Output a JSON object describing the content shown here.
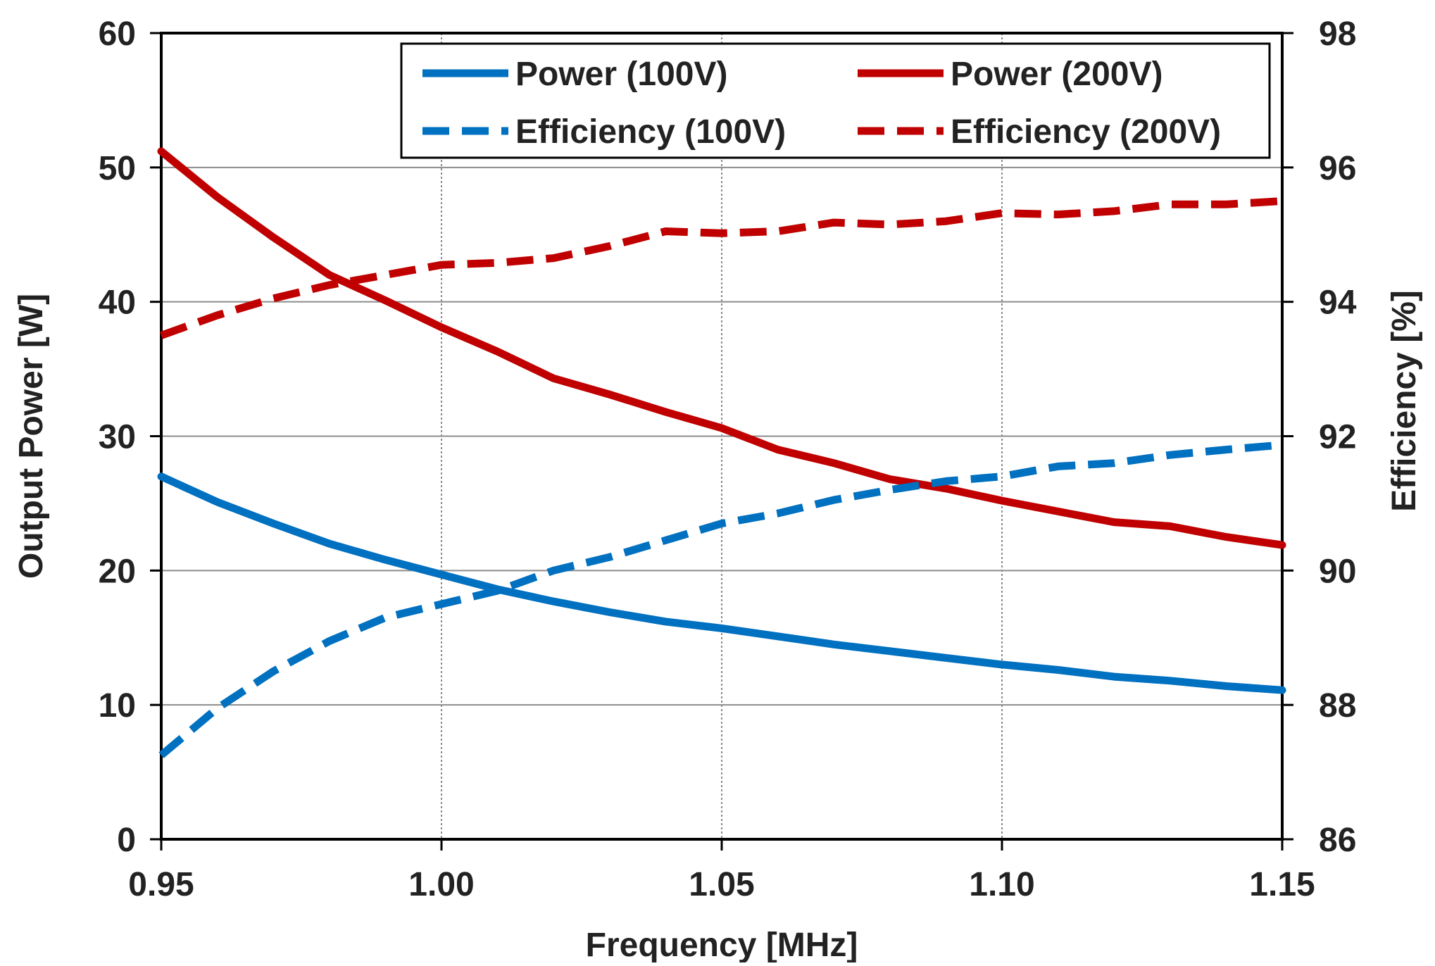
{
  "chart_data": {
    "type": "line",
    "title": "",
    "xlabel": "Frequency [MHz]",
    "ylabel": "Output Power [W]",
    "y2label": "Efficiency [%]",
    "xlim": [
      0.95,
      1.15
    ],
    "ylim": [
      0,
      60
    ],
    "y2lim": [
      86,
      98
    ],
    "x_ticks": [
      "0.95",
      "1.00",
      "1.05",
      "1.10",
      "1.15"
    ],
    "y_ticks": [
      "0",
      "10",
      "20",
      "30",
      "40",
      "50",
      "60"
    ],
    "y2_ticks": [
      "86",
      "88",
      "90",
      "92",
      "94",
      "96",
      "98"
    ],
    "grid": true,
    "legend_position": "top-right",
    "series": [
      {
        "name": "Power (100V)",
        "axis": "left",
        "style": "solid",
        "color": "#0070C0",
        "x": [
          0.95,
          0.96,
          0.97,
          0.98,
          0.99,
          1.0,
          1.01,
          1.02,
          1.03,
          1.04,
          1.05,
          1.06,
          1.07,
          1.08,
          1.09,
          1.1,
          1.11,
          1.12,
          1.13,
          1.14,
          1.15
        ],
        "y": [
          27.0,
          25.1,
          23.5,
          22.0,
          20.8,
          19.7,
          18.6,
          17.7,
          16.9,
          16.2,
          15.7,
          15.1,
          14.5,
          14.0,
          13.5,
          13.0,
          12.6,
          12.1,
          11.8,
          11.4,
          11.1
        ]
      },
      {
        "name": "Power (200V)",
        "axis": "left",
        "style": "solid",
        "color": "#C00000",
        "x": [
          0.95,
          0.96,
          0.97,
          0.98,
          0.99,
          1.0,
          1.01,
          1.02,
          1.03,
          1.04,
          1.05,
          1.06,
          1.07,
          1.08,
          1.09,
          1.1,
          1.11,
          1.12,
          1.13,
          1.14,
          1.15
        ],
        "y": [
          51.2,
          47.8,
          44.8,
          42.0,
          40.1,
          38.1,
          36.3,
          34.3,
          33.1,
          31.8,
          30.6,
          29.0,
          28.0,
          26.8,
          26.1,
          25.2,
          24.4,
          23.6,
          23.3,
          22.5,
          21.9
        ]
      },
      {
        "name": "Efficiency (100V)",
        "axis": "right",
        "style": "dashed",
        "color": "#0070C0",
        "x": [
          0.95,
          0.96,
          0.97,
          0.98,
          0.99,
          1.0,
          1.01,
          1.02,
          1.03,
          1.04,
          1.05,
          1.06,
          1.07,
          1.08,
          1.09,
          1.1,
          1.11,
          1.12,
          1.13,
          1.14,
          1.15
        ],
        "y": [
          87.25,
          87.95,
          88.5,
          88.95,
          89.3,
          89.5,
          89.7,
          90.0,
          90.2,
          90.45,
          90.7,
          90.85,
          91.05,
          91.2,
          91.33,
          91.4,
          91.55,
          91.6,
          91.72,
          91.8,
          91.87
        ]
      },
      {
        "name": "Efficiency (200V)",
        "axis": "right",
        "style": "dashed",
        "color": "#C00000",
        "x": [
          0.95,
          0.96,
          0.97,
          0.98,
          0.99,
          1.0,
          1.01,
          1.02,
          1.03,
          1.04,
          1.05,
          1.06,
          1.07,
          1.08,
          1.09,
          1.1,
          1.11,
          1.12,
          1.13,
          1.14,
          1.15
        ],
        "y": [
          93.5,
          93.8,
          94.05,
          94.25,
          94.4,
          94.55,
          94.58,
          94.65,
          94.83,
          95.05,
          95.02,
          95.05,
          95.18,
          95.15,
          95.2,
          95.32,
          95.3,
          95.35,
          95.45,
          95.45,
          95.5
        ]
      }
    ]
  }
}
